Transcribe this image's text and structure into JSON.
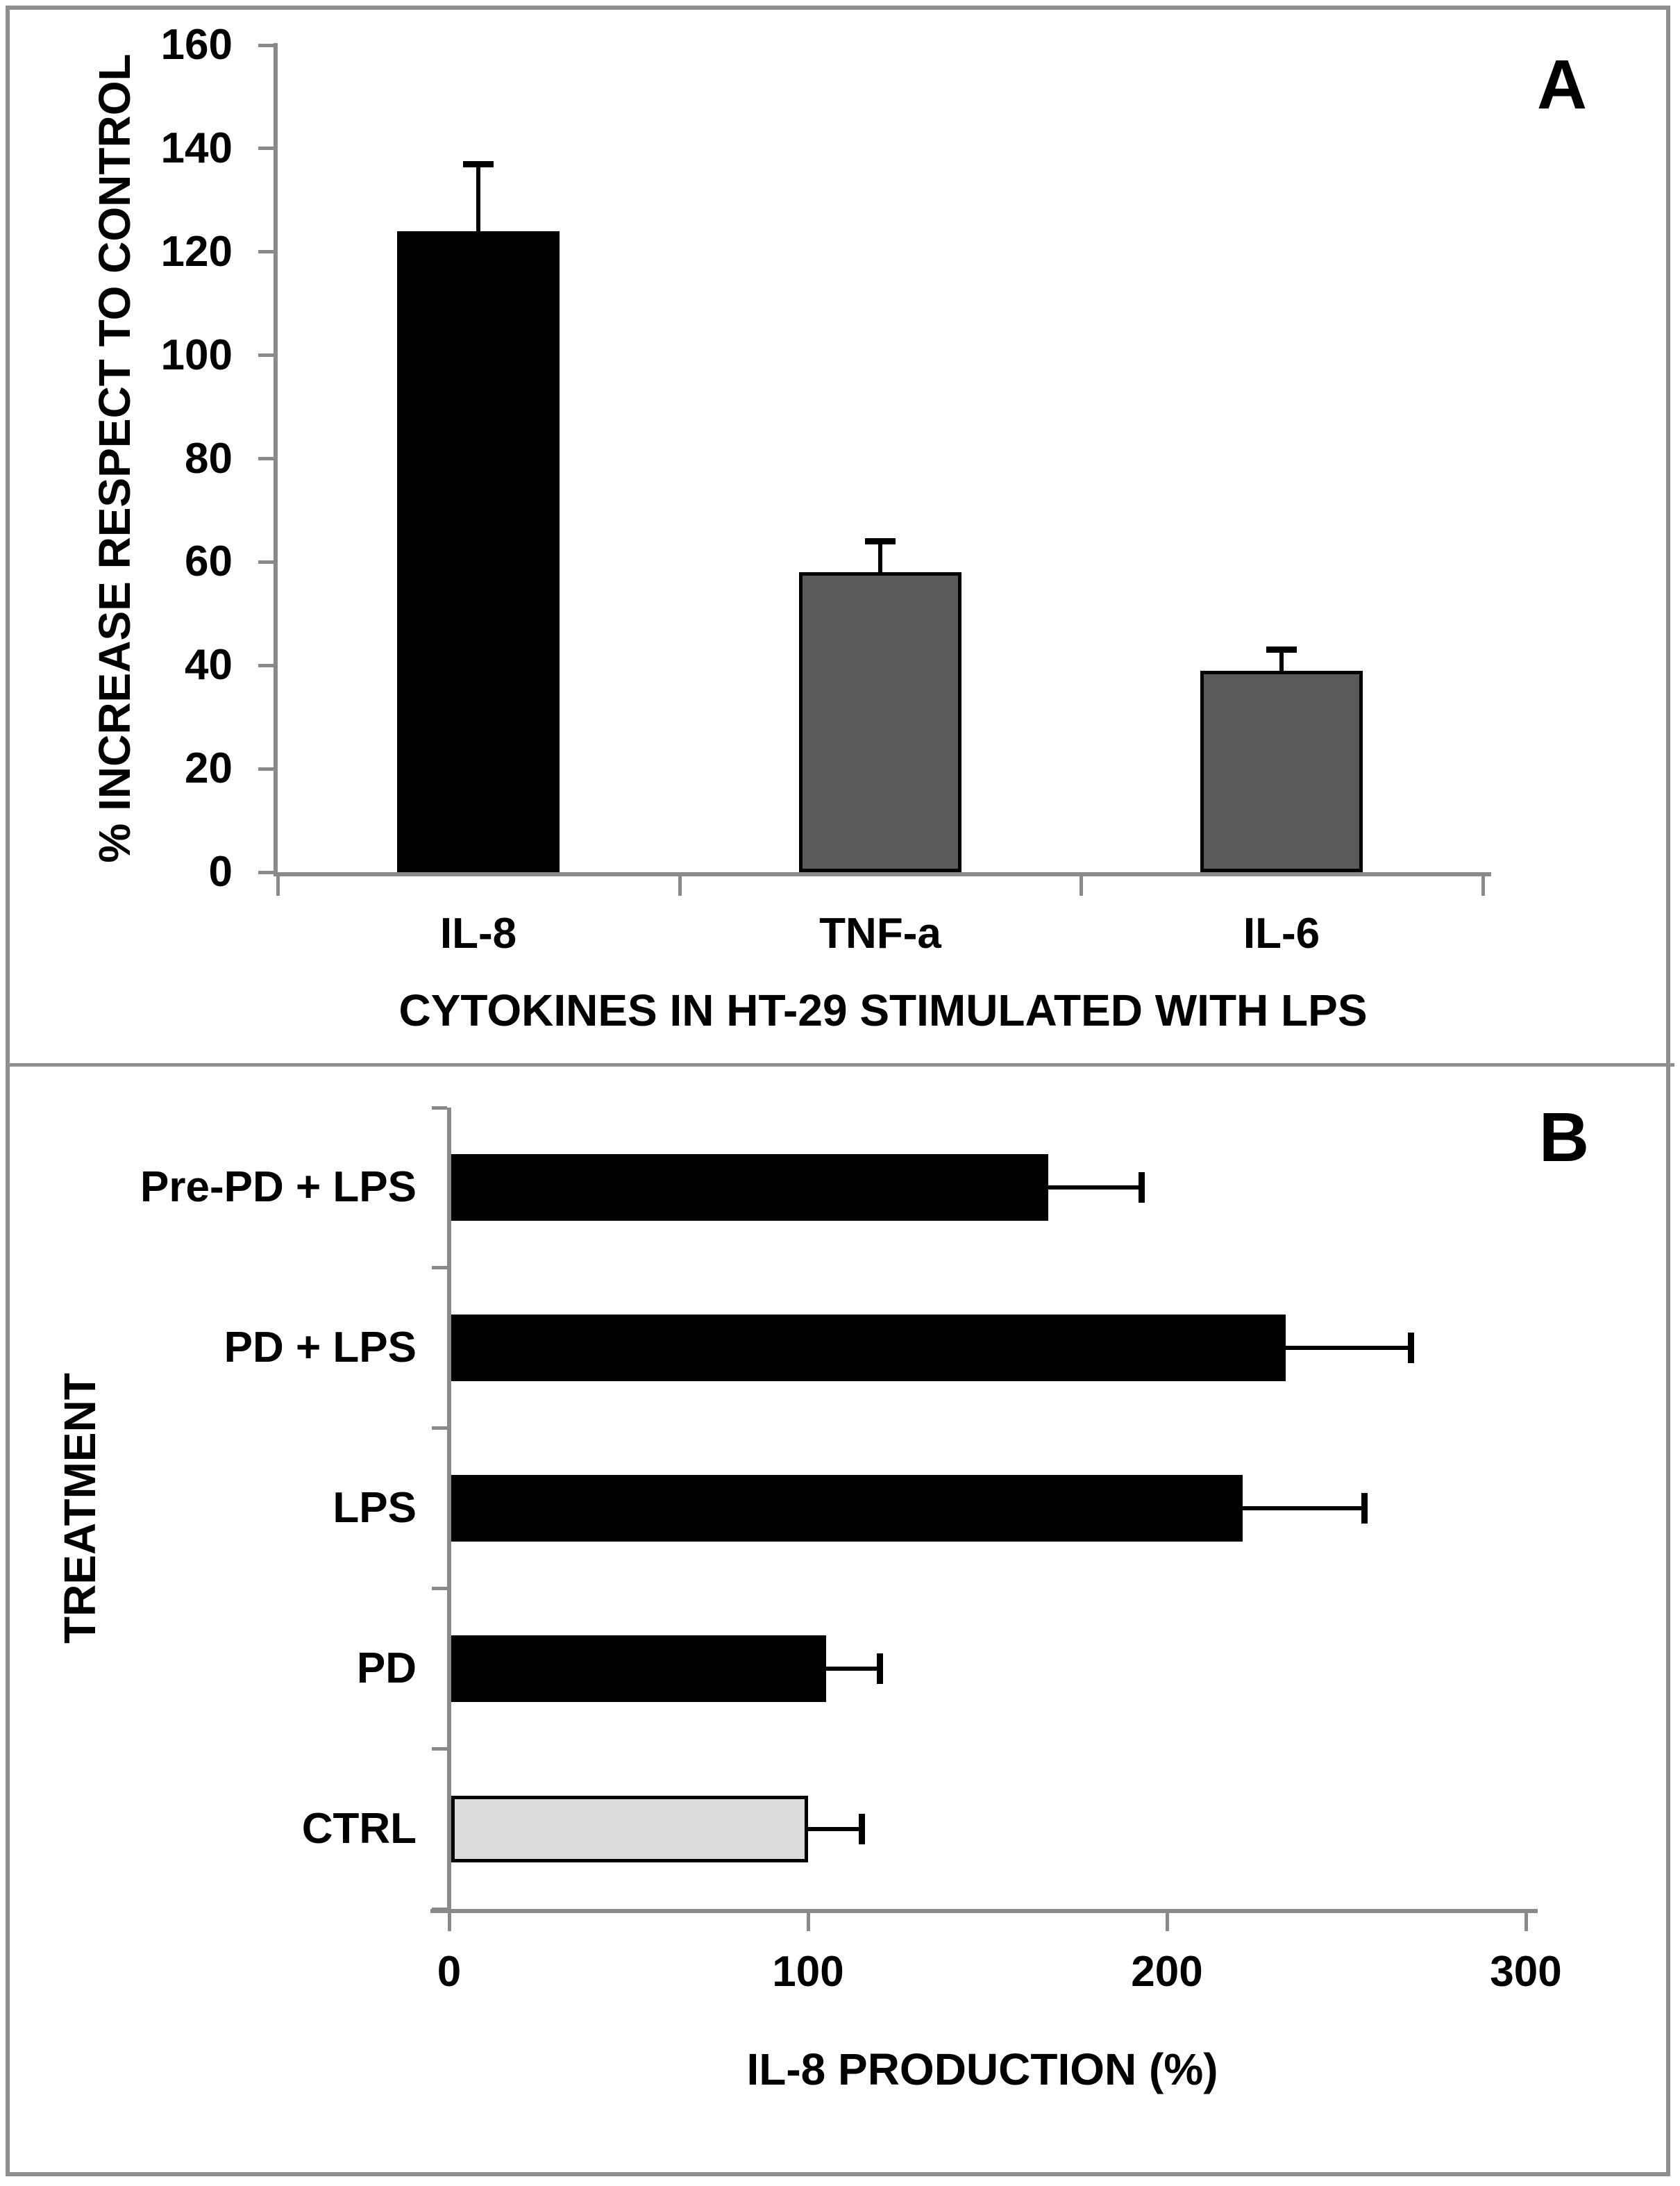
{
  "figure": {
    "panel_a_label": "A",
    "panel_b_label": "B"
  },
  "colors": {
    "axis": "#8a8a8a",
    "frame": "#8f8f8f",
    "bar_black": "#000000",
    "bar_dark_gray": "#595959",
    "bar_light_gray": "#dcdcdc",
    "error_bar": "#000000"
  },
  "chart_data": [
    {
      "type": "bar",
      "panel": "A",
      "title": "",
      "xlabel": "CYTOKINES IN HT-29 STIMULATED WITH LPS",
      "ylabel": "% INCREASE RESPECT TO CONTROL",
      "categories": [
        "IL-8",
        "TNF-a",
        "IL-6"
      ],
      "values": [
        124,
        58,
        39
      ],
      "errors_plus": [
        13,
        6,
        4
      ],
      "bar_colors": [
        "#000000",
        "#595959",
        "#595959"
      ],
      "ylim": [
        0,
        160
      ],
      "yticks": [
        160,
        140,
        120,
        100,
        80,
        60,
        40,
        20,
        0
      ],
      "grid": false,
      "legend": null
    },
    {
      "type": "bar",
      "orientation": "horizontal",
      "panel": "B",
      "title": "",
      "xlabel": "IL-8 PRODUCTION (%)",
      "ylabel": "TREATMENT",
      "categories": [
        "Pre-PD + LPS",
        "PD + LPS",
        "LPS",
        "PD",
        "CTRL"
      ],
      "values": [
        167,
        233,
        221,
        105,
        100
      ],
      "errors_plus": [
        26,
        35,
        34,
        15,
        15
      ],
      "bar_colors": [
        "#000000",
        "#000000",
        "#000000",
        "#000000",
        "#dcdcdc"
      ],
      "xlim": [
        0,
        300
      ],
      "xticks": [
        0,
        100,
        200,
        300
      ],
      "grid": false,
      "legend": null
    }
  ]
}
